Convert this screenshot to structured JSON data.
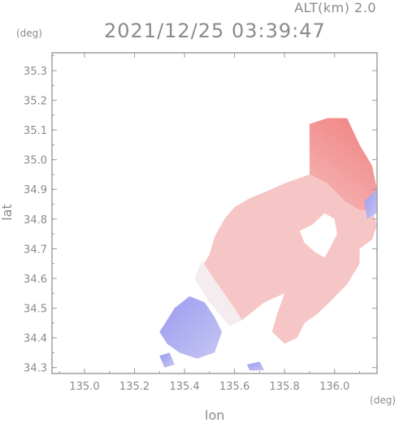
{
  "header": {
    "altitude_label": "ALT(km) 2.0",
    "timestamp": "2021/12/25 03:39:47"
  },
  "axes": {
    "y_unit": "(deg)",
    "x_unit": "(deg)",
    "x_title": "lon",
    "y_title": "lat"
  },
  "chart_data": {
    "type": "heatmap",
    "title": "2021/12/25 03:39:47",
    "subtitle": "ALT(km) 2.0",
    "xlabel": "lon",
    "ylabel": "lat",
    "x_unit": "(deg)",
    "y_unit": "(deg)",
    "xlim": [
      134.87,
      136.17
    ],
    "ylim": [
      34.28,
      35.36
    ],
    "x_ticks": [
      135.0,
      135.2,
      135.4,
      135.6,
      135.8,
      136.0
    ],
    "y_ticks": [
      34.3,
      34.4,
      34.5,
      34.6,
      34.7,
      34.8,
      34.9,
      35.0,
      35.1,
      35.2,
      35.3
    ],
    "x_tick_labels": [
      "135.0",
      "135.2",
      "135.4",
      "135.6",
      "135.8",
      "136.0"
    ],
    "y_tick_labels": [
      "34.3",
      "34.4",
      "34.5",
      "34.6",
      "34.7",
      "34.8",
      "34.9",
      "35.0",
      "35.1",
      "35.2",
      "35.3"
    ],
    "colormap": "diverging blue-white-red (blue = approaching, red = receding)",
    "colors": {
      "negative": "#8a8ae8",
      "neutral": "#f5eeee",
      "positive": "#f07a7a",
      "axis": "#9a9a9a"
    },
    "regions": [
      {
        "value": "strong positive",
        "polygon": [
          [
            135.9,
            35.12
          ],
          [
            135.97,
            35.14
          ],
          [
            136.05,
            35.14
          ],
          [
            136.1,
            35.05
          ],
          [
            136.15,
            34.98
          ],
          [
            136.17,
            34.9
          ],
          [
            136.15,
            34.83
          ],
          [
            136.1,
            34.83
          ],
          [
            136.04,
            34.86
          ],
          [
            135.97,
            34.92
          ],
          [
            135.9,
            34.95
          ],
          [
            135.8,
            34.92
          ],
          [
            135.72,
            34.89
          ],
          [
            135.66,
            34.87
          ],
          [
            135.6,
            34.84
          ],
          [
            135.56,
            34.8
          ],
          [
            135.56,
            34.76
          ],
          [
            135.62,
            34.78
          ],
          [
            135.7,
            34.82
          ],
          [
            135.8,
            34.86
          ],
          [
            135.9,
            34.92
          ],
          [
            135.9,
            35.03
          ]
        ]
      },
      {
        "value": "moderate positive",
        "polygon": [
          [
            135.56,
            34.8
          ],
          [
            135.6,
            34.84
          ],
          [
            135.66,
            34.87
          ],
          [
            135.72,
            34.89
          ],
          [
            135.8,
            34.92
          ],
          [
            135.9,
            34.95
          ],
          [
            135.97,
            34.92
          ],
          [
            136.04,
            34.86
          ],
          [
            136.1,
            34.83
          ],
          [
            136.15,
            34.83
          ],
          [
            136.17,
            34.78
          ],
          [
            136.15,
            34.73
          ],
          [
            136.1,
            34.7
          ],
          [
            136.1,
            34.65
          ],
          [
            136.05,
            34.58
          ],
          [
            135.98,
            34.52
          ],
          [
            135.93,
            34.48
          ],
          [
            135.88,
            34.45
          ],
          [
            135.85,
            34.4
          ],
          [
            135.8,
            34.38
          ],
          [
            135.75,
            34.42
          ],
          [
            135.77,
            34.48
          ],
          [
            135.8,
            34.55
          ],
          [
            135.72,
            34.52
          ],
          [
            135.63,
            34.46
          ],
          [
            135.58,
            34.44
          ],
          [
            135.5,
            34.52
          ],
          [
            135.44,
            34.6
          ],
          [
            135.5,
            34.68
          ],
          [
            135.52,
            34.74
          ]
        ]
      },
      {
        "value": "near zero",
        "polygon": [
          [
            135.44,
            34.6
          ],
          [
            135.5,
            34.52
          ],
          [
            135.58,
            34.44
          ],
          [
            135.63,
            34.46
          ],
          [
            135.6,
            34.5
          ],
          [
            135.55,
            34.56
          ],
          [
            135.5,
            34.62
          ],
          [
            135.47,
            34.66
          ]
        ]
      },
      {
        "value": "negative",
        "polygon": [
          [
            135.36,
            34.5
          ],
          [
            135.42,
            34.54
          ],
          [
            135.48,
            34.52
          ],
          [
            135.52,
            34.47
          ],
          [
            135.55,
            34.42
          ],
          [
            135.52,
            34.35
          ],
          [
            135.45,
            34.33
          ],
          [
            135.38,
            34.35
          ],
          [
            135.33,
            34.38
          ],
          [
            135.3,
            34.42
          ],
          [
            135.33,
            34.46
          ]
        ]
      },
      {
        "value": "negative",
        "polygon": [
          [
            136.12,
            34.86
          ],
          [
            136.17,
            34.9
          ],
          [
            136.17,
            34.82
          ],
          [
            136.13,
            34.8
          ]
        ]
      },
      {
        "value": "negative",
        "polygon": [
          [
            135.3,
            34.34
          ],
          [
            135.34,
            34.35
          ],
          [
            135.36,
            34.31
          ],
          [
            135.32,
            34.3
          ]
        ]
      },
      {
        "value": "negative",
        "polygon": [
          [
            135.65,
            34.31
          ],
          [
            135.7,
            34.32
          ],
          [
            135.72,
            34.29
          ],
          [
            135.66,
            34.29
          ]
        ]
      },
      {
        "value": "echo-free gap",
        "polygon": [
          [
            135.91,
            34.78
          ],
          [
            135.96,
            34.82
          ],
          [
            136.0,
            34.8
          ],
          [
            136.01,
            34.75
          ],
          [
            135.98,
            34.7
          ],
          [
            135.96,
            34.67
          ],
          [
            135.92,
            34.69
          ],
          [
            135.88,
            34.72
          ],
          [
            135.86,
            34.76
          ]
        ]
      }
    ]
  }
}
